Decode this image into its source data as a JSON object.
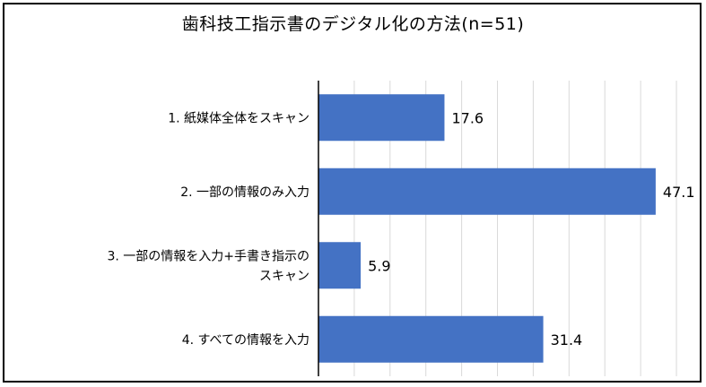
{
  "chart_data": {
    "type": "bar",
    "orientation": "horizontal",
    "title": "歯科技工指示書のデジタル化の方法(n=51)",
    "categories": [
      [
        "1. 紙媒体全体をスキャン"
      ],
      [
        "2. 一部の情報のみ入力"
      ],
      [
        "3. 一部の情報を入力+手書き指示の",
        "スキャン"
      ],
      [
        "4. すべての情報を入力"
      ]
    ],
    "values": [
      17.6,
      47.1,
      5.9,
      31.4
    ],
    "value_labels": [
      "17.6",
      "47.1",
      "5.9",
      "31.4"
    ],
    "xlim": [
      0,
      52
    ],
    "grid": true,
    "bar_color": "#4472C4",
    "legend": "none"
  }
}
